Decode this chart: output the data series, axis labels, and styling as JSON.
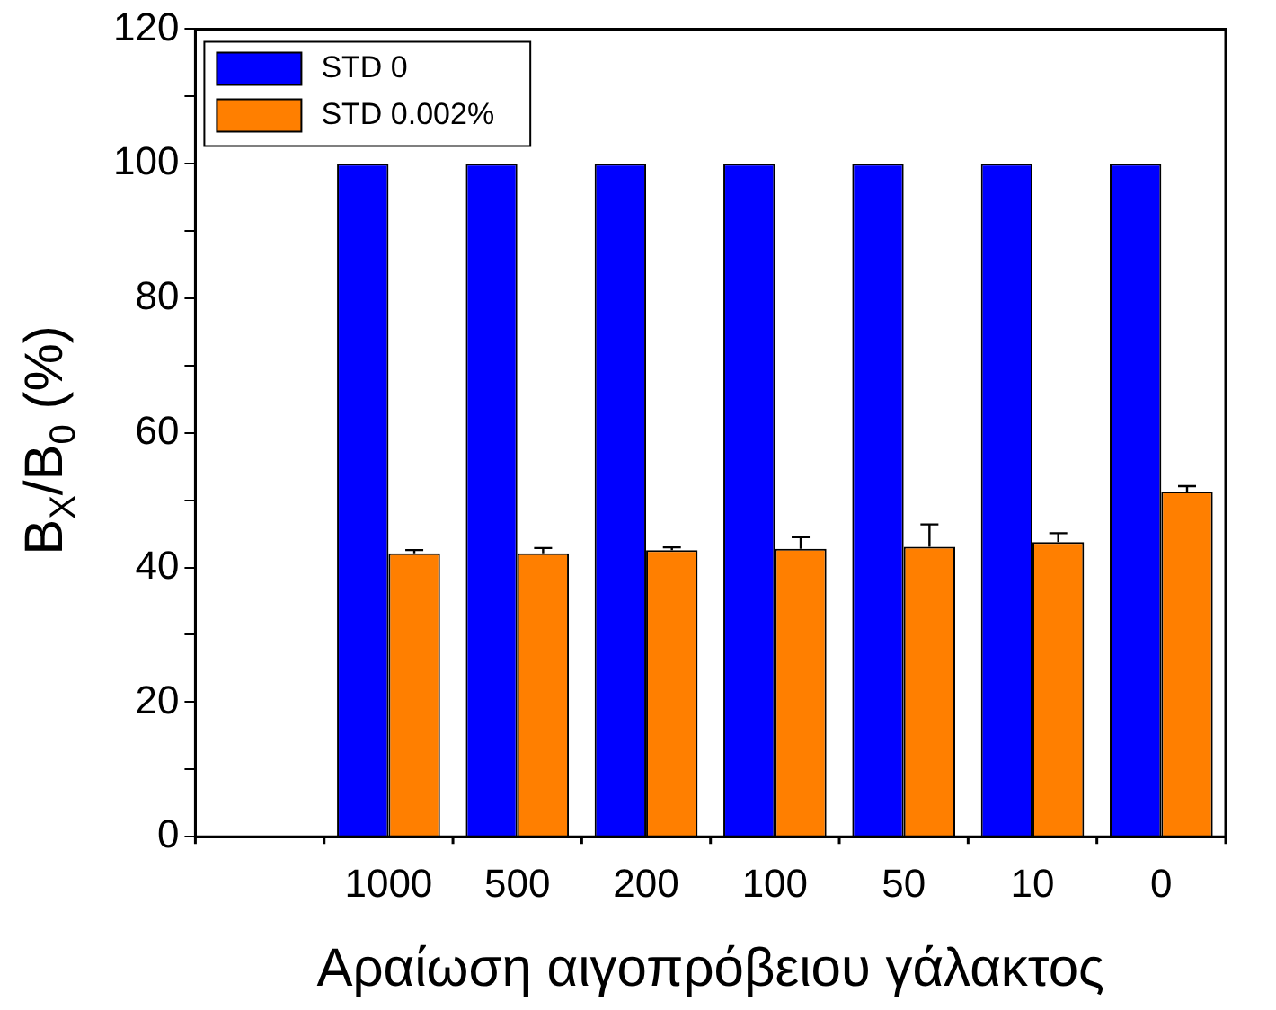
{
  "chart_data": {
    "type": "bar",
    "xlabel": "Αραίωση αιγοπρόβειου γάλακτος",
    "ylabel": "B$_{X}$/B$_{0}$ (%)",
    "categories": [
      null,
      "1000",
      "500",
      "200",
      "100",
      "50",
      "10",
      "0"
    ],
    "series": [
      {
        "name": "STD 0",
        "color": "#0000ff",
        "values": [
          null,
          100,
          100,
          100,
          100,
          100,
          100,
          100
        ]
      },
      {
        "name": "STD 0.002%",
        "color": "#ff7f00",
        "values": [
          null,
          42.1,
          42.1,
          42.6,
          42.8,
          43.1,
          43.8,
          51.3
        ],
        "errors": [
          null,
          [
            42.1,
            42.6
          ],
          [
            42.1,
            42.9
          ],
          [
            42.6,
            43.0
          ],
          [
            42.8,
            44.5
          ],
          [
            43.1,
            46.4
          ],
          [
            43.8,
            45.1
          ],
          [
            51.3,
            52.1
          ]
        ]
      }
    ],
    "ylim": [
      0,
      120
    ],
    "yticks": [
      0,
      {
        "value": 10,
        "label": null
      },
      20,
      {
        "value": 30,
        "label": null
      },
      40,
      {
        "value": 50,
        "label": null
      },
      60,
      {
        "value": 70,
        "label": null
      },
      80,
      {
        "value": 90,
        "label": null
      },
      100,
      {
        "value": 110,
        "label": null
      },
      120
    ],
    "grid": false,
    "legend": "top left"
  }
}
